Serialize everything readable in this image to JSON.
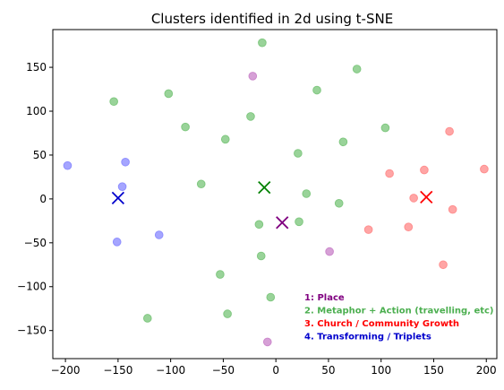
{
  "chart_data": {
    "type": "scatter",
    "title": "Clusters identified in 2d using t-SNE",
    "xlabel": "",
    "ylabel": "",
    "xlim": [
      -212,
      210
    ],
    "ylim": [
      -182,
      193
    ],
    "xticks": [
      -200,
      -150,
      -100,
      -50,
      0,
      50,
      100,
      150,
      200
    ],
    "yticks": [
      -150,
      -100,
      -50,
      0,
      50,
      100,
      150
    ],
    "grid": false,
    "legend": {
      "placement": "lower-center",
      "entries": [
        {
          "label": "1: Place",
          "color": "#800080"
        },
        {
          "label": "2. Metaphor + Action (travelling, etc)",
          "color": "#4caf50"
        },
        {
          "label": "3. Church / Community Growth",
          "color": "#ff0000"
        },
        {
          "label": "4. Transforming / Triplets",
          "color": "#0000cc"
        }
      ]
    },
    "series": [
      {
        "cluster": 1,
        "color": "#cc88cc",
        "points": [
          [
            -22,
            140
          ],
          [
            51,
            -60
          ],
          [
            -8,
            -163
          ]
        ],
        "centroid": [
          6,
          -27
        ],
        "centroid_color": "#800080"
      },
      {
        "cluster": 2,
        "color": "#80c880",
        "points": [
          [
            -13,
            178
          ],
          [
            77,
            148
          ],
          [
            -154,
            111
          ],
          [
            -102,
            120
          ],
          [
            39,
            124
          ],
          [
            -24,
            94
          ],
          [
            -86,
            82
          ],
          [
            104,
            81
          ],
          [
            -48,
            68
          ],
          [
            64,
            65
          ],
          [
            21,
            52
          ],
          [
            -71,
            17
          ],
          [
            29,
            6
          ],
          [
            60,
            -5
          ],
          [
            -16,
            -29
          ],
          [
            22,
            -26
          ],
          [
            -14,
            -65
          ],
          [
            -53,
            -86
          ],
          [
            -5,
            -112
          ],
          [
            -122,
            -136
          ],
          [
            -46,
            -131
          ]
        ],
        "centroid": [
          -11,
          13
        ],
        "centroid_color": "#008000"
      },
      {
        "cluster": 3,
        "color": "#ff8f8f",
        "points": [
          [
            165,
            77
          ],
          [
            108,
            29
          ],
          [
            141,
            33
          ],
          [
            198,
            34
          ],
          [
            131,
            1
          ],
          [
            168,
            -12
          ],
          [
            88,
            -35
          ],
          [
            126,
            -32
          ],
          [
            159,
            -75
          ]
        ],
        "centroid": [
          143,
          2
        ],
        "centroid_color": "#ff0000"
      },
      {
        "cluster": 4,
        "color": "#8f8fff",
        "points": [
          [
            -198,
            38
          ],
          [
            -143,
            42
          ],
          [
            -146,
            14
          ],
          [
            -151,
            -49
          ],
          [
            -111,
            -41
          ]
        ],
        "centroid": [
          -150,
          1
        ],
        "centroid_color": "#0000cc"
      }
    ]
  }
}
